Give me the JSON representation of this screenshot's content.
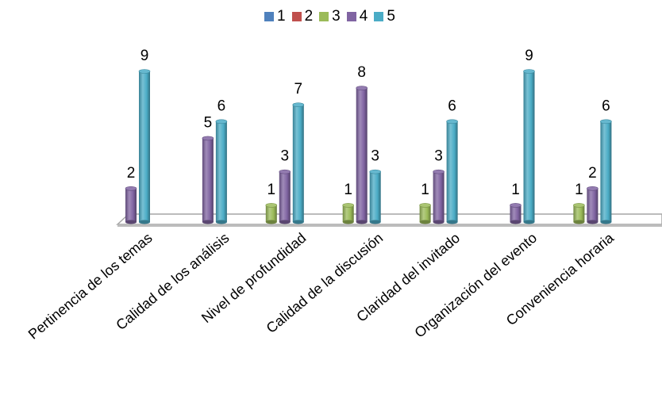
{
  "chart_data": {
    "type": "bar",
    "categories": [
      "Pertinencia de los temas",
      "Calidad de los análisis",
      "Nivel de profundidad",
      "Calidad de la discusión",
      "Claridad del invitado",
      "Organización del evento",
      "Conveniencia horaria"
    ],
    "series": [
      {
        "name": "1",
        "color": "#4f81bd",
        "values": [
          0,
          0,
          0,
          0,
          0,
          0,
          0
        ]
      },
      {
        "name": "2",
        "color": "#c0504d",
        "values": [
          0,
          0,
          0,
          0,
          0,
          0,
          0
        ]
      },
      {
        "name": "3",
        "color": "#9bbb59",
        "values": [
          0,
          0,
          1,
          1,
          1,
          0,
          1
        ]
      },
      {
        "name": "4",
        "color": "#8064a2",
        "values": [
          2,
          5,
          3,
          8,
          3,
          1,
          2
        ]
      },
      {
        "name": "5",
        "color": "#4bacc6",
        "values": [
          9,
          6,
          7,
          3,
          6,
          9,
          6
        ]
      }
    ],
    "ylim": [
      0,
      9
    ],
    "grid": false,
    "legend_position": "top",
    "style": "3d-cylinder",
    "data_labels": true
  }
}
